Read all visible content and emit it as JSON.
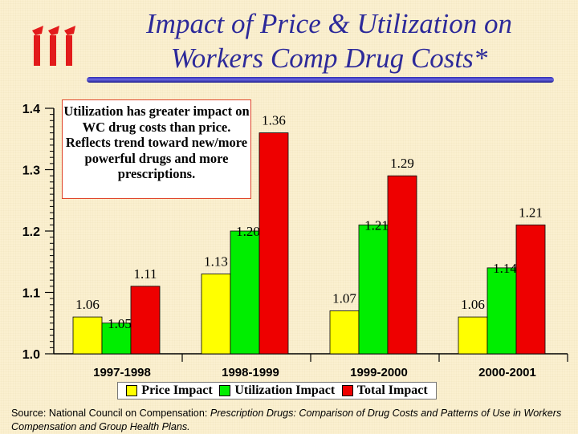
{
  "header": {
    "title_line1": "Impact of Price & Utilization on",
    "title_line2": "Workers Comp Drug Costs*",
    "logo_name": "iii-logo-icon"
  },
  "callout": {
    "text": "Utilization has greater impact on WC drug costs than price. Reflects trend toward new/more powerful drugs and more prescriptions."
  },
  "source": {
    "prefix": "Source: National Council on Compensation: ",
    "title": "Prescription Drugs: Comparison of Drug Costs and Patterns of Use in Workers Compensation and Group Health Plans."
  },
  "chart_data": {
    "type": "bar",
    "categories": [
      "1997-1998",
      "1998-1999",
      "1999-2000",
      "2000-2001"
    ],
    "series": [
      {
        "name": "Price Impact",
        "color": "#ffff00",
        "values": [
          1.06,
          1.13,
          1.07,
          1.06
        ]
      },
      {
        "name": "Utilization Impact",
        "color": "#00ee00",
        "values": [
          1.05,
          1.2,
          1.21,
          1.14
        ]
      },
      {
        "name": "Total Impact",
        "color": "#ee0000",
        "values": [
          1.11,
          1.36,
          1.29,
          1.21
        ]
      }
    ],
    "ylim": [
      1.0,
      1.4
    ],
    "yticks": [
      "1.0",
      "1.1",
      "1.2",
      "1.3",
      "1.4"
    ],
    "legend_position": "bottom",
    "title": "",
    "xlabel": "",
    "ylabel": ""
  }
}
